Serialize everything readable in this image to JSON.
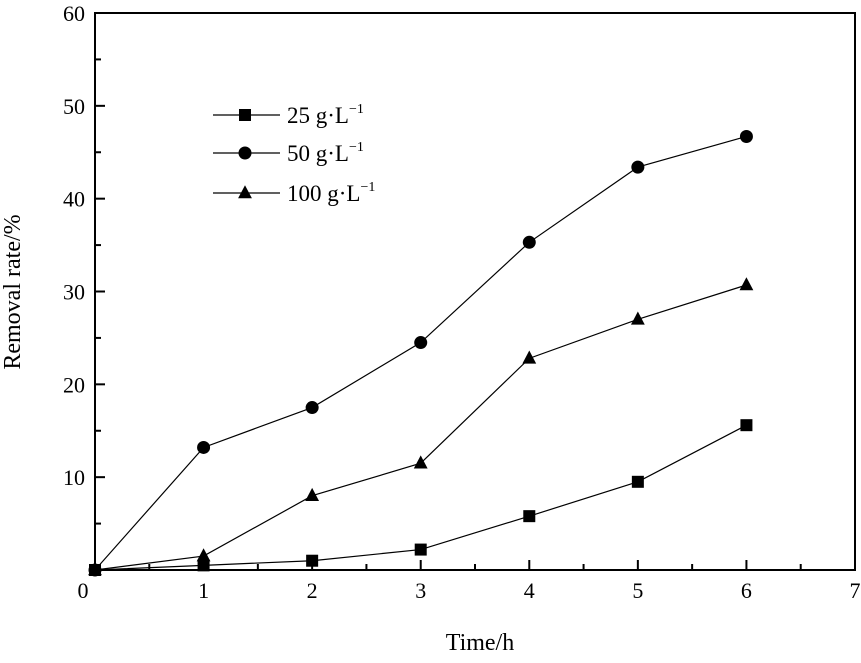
{
  "chart_data": {
    "type": "line",
    "title": "",
    "xlabel": "Time/h",
    "ylabel": "Removal rate/%",
    "xlim": [
      0,
      7
    ],
    "ylim": [
      0,
      60
    ],
    "xticks": [
      0,
      1,
      2,
      3,
      4,
      5,
      6,
      7
    ],
    "yticks": [
      0,
      10,
      20,
      30,
      40,
      50,
      60
    ],
    "grid": false,
    "legend_position": "upper-left",
    "x": [
      0,
      1,
      2,
      3,
      4,
      5,
      6
    ],
    "series": [
      {
        "name": "25 g·L",
        "unit_superscript": "−1",
        "marker": "square",
        "values": [
          0,
          0.5,
          1.0,
          2.2,
          5.8,
          9.5,
          15.6
        ]
      },
      {
        "name": "50 g·L",
        "unit_superscript": "−1",
        "marker": "circle",
        "values": [
          0,
          13.2,
          17.5,
          24.5,
          35.3,
          43.4,
          46.7
        ]
      },
      {
        "name": "100 g·L",
        "unit_superscript": "−1",
        "marker": "triangle",
        "values": [
          0,
          1.5,
          8.0,
          11.5,
          22.8,
          27.0,
          30.7
        ]
      }
    ]
  }
}
